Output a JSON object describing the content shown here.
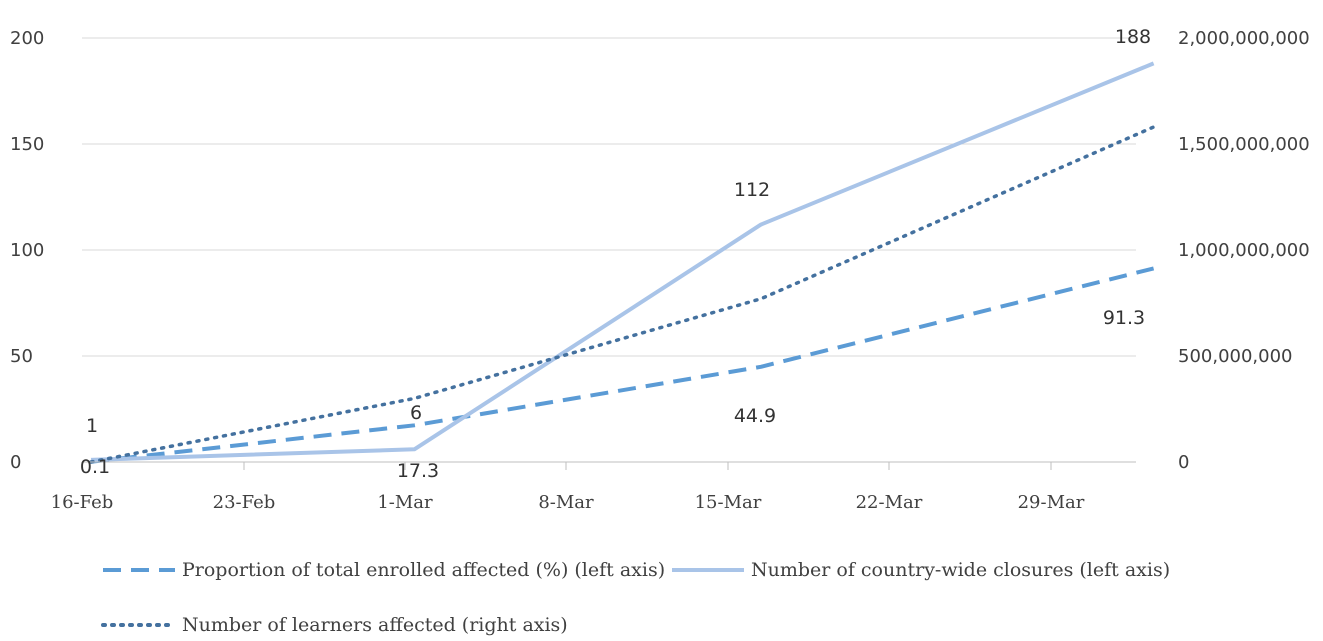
{
  "chart_data": {
    "type": "line",
    "x": [
      "16-Feb",
      "1-Mar",
      "16-Mar",
      "2-Apr"
    ],
    "x_ticks": [
      "16-Feb",
      "23-Feb",
      "1-Mar",
      "8-Mar",
      "15-Mar",
      "22-Mar",
      "29-Mar"
    ],
    "ylim_left": [
      0,
      200
    ],
    "ylim_right": [
      0,
      2000000000
    ],
    "y_ticks_left": [
      "0",
      "50",
      "100",
      "150",
      "200"
    ],
    "y_ticks_right": [
      "0",
      "500,000,000",
      "1,000,000,000",
      "1,500,000,000",
      "2,000,000,000"
    ],
    "grid": "horizontal",
    "legend_position": "bottom",
    "series": [
      {
        "name": "Proportion of total enrolled affected (%) (left axis)",
        "axis": "left",
        "style": "dashed",
        "color": "#5B9BD5",
        "dates": [
          "16-Feb",
          "1-Mar",
          "16-Mar",
          "2-Apr"
        ],
        "values": [
          0.1,
          17.3,
          44.9,
          91.3
        ],
        "labels": [
          "0.1",
          "17.3",
          "44.9",
          "91.3"
        ]
      },
      {
        "name": "Number of country-wide closures (left axis)",
        "axis": "left",
        "style": "solid",
        "color": "#A9C4E8",
        "dates": [
          "16-Feb",
          "1-Mar",
          "16-Mar",
          "2-Apr"
        ],
        "values": [
          1,
          6,
          112,
          188
        ],
        "labels": [
          "1",
          "6",
          "112",
          "188"
        ]
      },
      {
        "name": "Number of learners affected (right axis)",
        "axis": "right",
        "style": "dotted",
        "color": "#44719F",
        "dates": [
          "16-Feb",
          "1-Mar",
          "16-Mar",
          "2-Apr"
        ],
        "values": [
          0,
          300000000,
          770000000,
          1580000000
        ],
        "labels": []
      }
    ]
  }
}
